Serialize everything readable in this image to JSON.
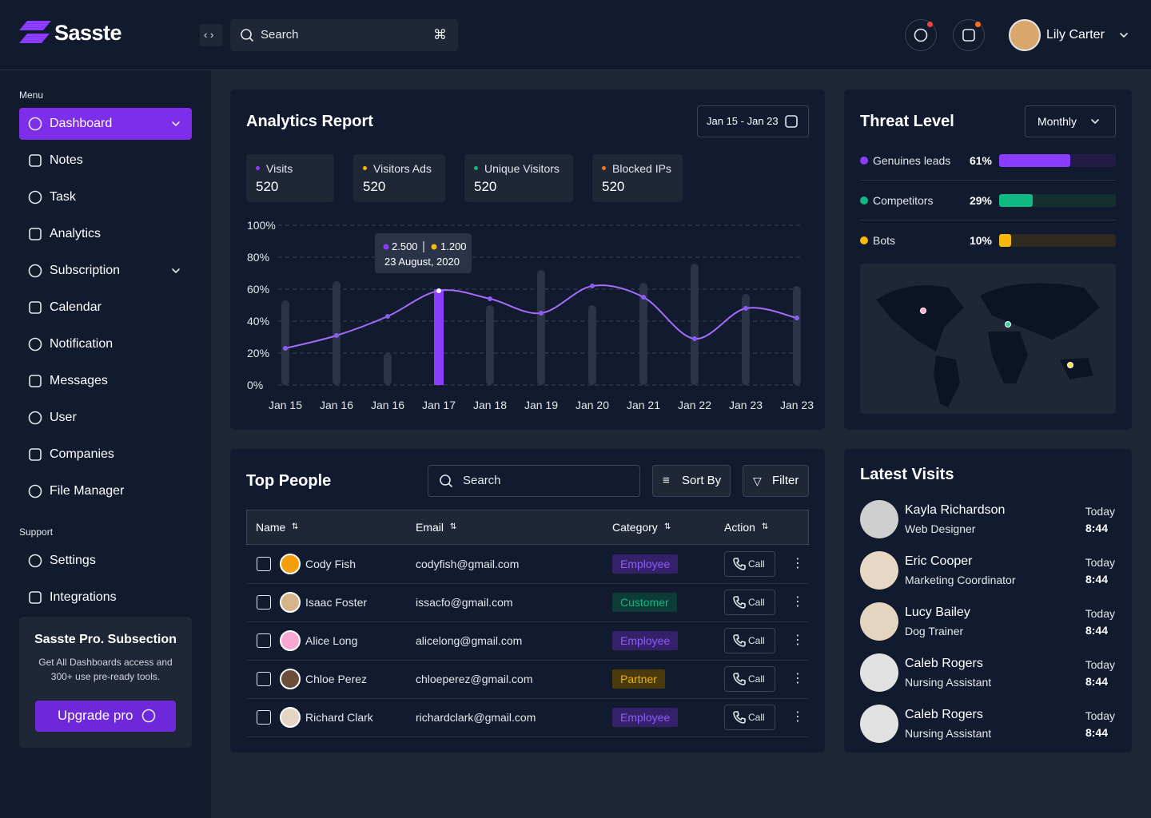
{
  "header": {
    "brand": "Sasste",
    "search": "Search",
    "user": "Lily Carter"
  },
  "sidebar": {
    "menu_label": "Menu",
    "menu": [
      {
        "label": "Dashboard",
        "active": true,
        "expandable": true
      },
      {
        "label": "Notes"
      },
      {
        "label": "Task"
      },
      {
        "label": "Analytics"
      },
      {
        "label": "Subscription",
        "expandable": true
      },
      {
        "label": "Calendar"
      },
      {
        "label": "Notification"
      },
      {
        "label": "Messages"
      },
      {
        "label": "User"
      },
      {
        "label": "Companies"
      },
      {
        "label": "File Manager"
      }
    ],
    "support_label": "Support",
    "support": [
      "Settings",
      "Integrations"
    ],
    "promo": {
      "title": "Sasste Pro. Subsection",
      "text": "Get All Dashboards access and 300+ use pre-ready tools.",
      "button": "Upgrade pro"
    }
  },
  "analytics": {
    "title": "Analytics Report",
    "date_range": "Jan 15 - Jan 23",
    "stats": [
      {
        "name": "Visits",
        "value": 520,
        "color": "#8b3dff"
      },
      {
        "name": "Visitors Ads",
        "value": 520,
        "color": "#f5b80b"
      },
      {
        "name": "Unique Visitors",
        "value": 520,
        "color": "#10b981"
      },
      {
        "name": "Blocked IPs",
        "value": 520,
        "color": "#f97316"
      }
    ],
    "tooltip": {
      "first": "2.500",
      "first_color": "#8b3dff",
      "second": "1.200",
      "second_color": "#f5b80b",
      "date": "23 August, 2020"
    }
  },
  "chart_data": {
    "type": "line",
    "categories": [
      "Jan 15",
      "Jan 16",
      "Jan 16",
      "Jan 17",
      "Jan 18",
      "Jan 19",
      "Jan 20",
      "Jan 21",
      "Jan 22",
      "Jan 23",
      "Jan 23"
    ],
    "values": [
      23,
      31,
      43,
      59,
      54,
      45,
      62,
      55,
      29,
      48,
      42
    ],
    "color": "#a56cf7",
    "bars": [
      53,
      65,
      20,
      60,
      50,
      72,
      50,
      64,
      76,
      57,
      62
    ],
    "bar_color": "#2a3347",
    "highlight_index": 3,
    "highlight_color": "#8b3dff",
    "ylim": [
      0,
      100
    ],
    "yticks": [
      {
        "value": 0,
        "label": "0%"
      },
      {
        "value": 20,
        "label": "20%"
      },
      {
        "value": 40,
        "label": "40%"
      },
      {
        "value": 60,
        "label": "60%"
      },
      {
        "value": 80,
        "label": "80%"
      },
      {
        "value": 100,
        "label": "100%"
      }
    ],
    "grid": true
  },
  "threat": {
    "title": "Threat Level",
    "period": "Monthly",
    "names": [
      "Genuines leads",
      "Competitors",
      "Bots"
    ],
    "values": [
      61,
      29,
      10
    ],
    "value_labels": [
      "61%",
      "29%",
      "10%"
    ],
    "colors": [
      "#8b3dff",
      "#10b981",
      "#f5b80b"
    ],
    "tracks": [
      "#221c45",
      "#13302f",
      "#2e2a1f"
    ],
    "xlim": [
      0,
      100
    ]
  },
  "people": {
    "title": "Top People",
    "search": "Search",
    "sort": "Sort By",
    "filter": "Filter",
    "columns": [
      "Name",
      "Email",
      "Category",
      "Action"
    ],
    "rows": [
      {
        "name": "Cody Fish",
        "email": "codyfish@gmail.com",
        "category": "Employee",
        "category_color": "#8b5cf6",
        "category_bg": "#35206a",
        "action": "Call",
        "avatar": "#f59e0b"
      },
      {
        "name": "Isaac Foster",
        "email": "issacfo@gmail.com",
        "category": "Customer",
        "category_color": "#10b981",
        "category_bg": "#0d3b36",
        "action": "Call",
        "avatar": "#d6b48a"
      },
      {
        "name": "Alice Long",
        "email": "alicelong@gmail.com",
        "category": "Employee",
        "category_color": "#8b5cf6",
        "category_bg": "#35206a",
        "action": "Call",
        "avatar": "#f9a8d4"
      },
      {
        "name": "Chloe Perez",
        "email": "chloeperez@gmail.com",
        "category": "Partner",
        "category_color": "#eab308",
        "category_bg": "#4a3a0c",
        "action": "Call",
        "avatar": "#6b4f3a"
      },
      {
        "name": "Richard Clark",
        "email": "richardclark@gmail.com",
        "category": "Employee",
        "category_color": "#8b5cf6",
        "category_bg": "#35206a",
        "action": "Call",
        "avatar": "#e5d3c3"
      }
    ]
  },
  "visits": {
    "title": "Latest Visits",
    "items": [
      {
        "name": "Kayla Richardson",
        "role": "Web Designer",
        "day": "Today",
        "time": "8:44",
        "avatar": "#cfcfcf"
      },
      {
        "name": "Eric Cooper",
        "role": "Marketing Coordinator",
        "day": "Today",
        "time": "8:44",
        "avatar": "#e8d7c4"
      },
      {
        "name": "Lucy Bailey",
        "role": "Dog Trainer",
        "day": "Today",
        "time": "8:44",
        "avatar": "#e5d4bf"
      },
      {
        "name": "Caleb Rogers",
        "role": "Nursing Assistant",
        "day": "Today",
        "time": "8:44",
        "avatar": "#e2e2e2"
      },
      {
        "name": "Caleb Rogers",
        "role": "Nursing Assistant",
        "day": "Today",
        "time": "8:44",
        "avatar": "#e2e2e2"
      }
    ]
  }
}
